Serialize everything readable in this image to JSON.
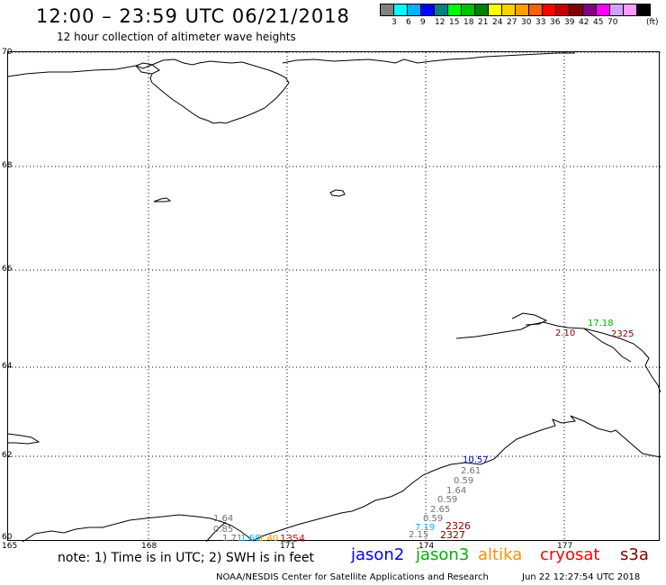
{
  "header": {
    "title": "12:00 – 23:59 UTC 06/21/2018",
    "subtitle": "12 hour collection of altimeter wave heights"
  },
  "legend": {
    "colors": [
      "#808080",
      "#00ffff",
      "#00b0ff",
      "#0000ff",
      "#008080",
      "#00ff00",
      "#00c000",
      "#008000",
      "#ffff00",
      "#ffd000",
      "#ffa000",
      "#ff6000",
      "#ff0000",
      "#c00000",
      "#800000",
      "#800080",
      "#ff00ff",
      "#d0a0ff",
      "#ff9cff",
      "#000000"
    ],
    "labels": [
      "3",
      "6",
      "9",
      "12",
      "15",
      "18",
      "21",
      "24",
      "27",
      "30",
      "33",
      "36",
      "39",
      "42",
      "45",
      "70",
      "(ft)"
    ]
  },
  "axes": {
    "lat_labels": [
      "70",
      "68",
      "66",
      "64",
      "62",
      "60"
    ],
    "lon_labels": [
      "165",
      "168",
      "171",
      "174",
      "177"
    ]
  },
  "observations": [
    {
      "text": "17.18",
      "color": "#00b000",
      "satellite": "jason3"
    },
    {
      "text": "2.10",
      "color": "#800000",
      "satellite": "s3a"
    },
    {
      "text": "2325",
      "color": "#800000",
      "satellite": "s3a"
    },
    {
      "text": "10.57",
      "color": "#0000c0",
      "satellite": "jason2"
    },
    {
      "text": "2.61",
      "color": "#707070",
      "satellite": ""
    },
    {
      "text": "0.59",
      "color": "#707070",
      "satellite": ""
    },
    {
      "text": "1.64",
      "color": "#707070",
      "satellite": ""
    },
    {
      "text": "0.59",
      "color": "#707070",
      "satellite": ""
    },
    {
      "text": "2.65",
      "color": "#707070",
      "satellite": ""
    },
    {
      "text": "0.59",
      "color": "#707070",
      "satellite": ""
    },
    {
      "text": "7.19",
      "color": "#00b0ff",
      "satellite": ""
    },
    {
      "text": "2.15",
      "color": "#707070",
      "satellite": ""
    },
    {
      "text": "2326",
      "color": "#800000",
      "satellite": "s3a"
    },
    {
      "text": "2327",
      "color": "#800000",
      "satellite": "s3a"
    },
    {
      "text": "1.64",
      "color": "#707070",
      "satellite": ""
    },
    {
      "text": "0.85",
      "color": "#707070",
      "satellite": ""
    },
    {
      "text": "1.71",
      "color": "#707070",
      "satellite": ""
    },
    {
      "text": "1.68",
      "color": "#00b0ff",
      "satellite": ""
    },
    {
      "text": "1.40",
      "color": "#ff9000",
      "satellite": "altika"
    },
    {
      "text": "1354",
      "color": "#ff0000",
      "satellite": "cryosat"
    }
  ],
  "footer": {
    "note": "note: 1) Time is in UTC; 2) SWH is in feet",
    "satellites": [
      {
        "name": "jason2",
        "color": "#0000ff"
      },
      {
        "name": "jason3",
        "color": "#00b000"
      },
      {
        "name": "altika",
        "color": "#ff9000"
      },
      {
        "name": "cryosat",
        "color": "#ff0000"
      },
      {
        "name": "s3a",
        "color": "#800000"
      }
    ],
    "credit": "NOAA/NESDIS Center for Satellite Applications and Research",
    "timestamp": "Jun 22 12:27:54 UTC 2018"
  }
}
